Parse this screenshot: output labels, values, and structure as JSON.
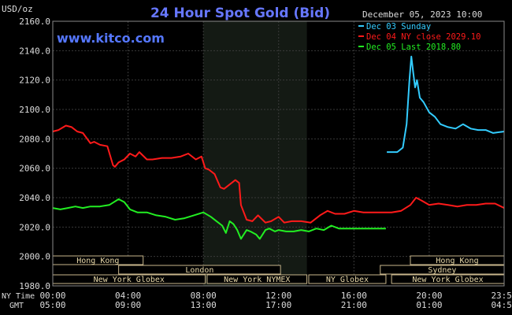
{
  "chart_data": {
    "type": "line",
    "title": "24 Hour Spot Gold (Bid)",
    "website": "www.kitco.com",
    "ylabel": "USD/oz",
    "timestamp": "December 05, 2023 10:00",
    "ylim": [
      1980,
      2160
    ],
    "y_ticks": [
      "2160.0",
      "2140.0",
      "2120.0",
      "2100.0",
      "2080.0",
      "2060.0",
      "2040.0",
      "2020.0",
      "2000.0",
      "1980.0"
    ],
    "x_tick_label_row1": "NY Time",
    "x_tick_label_row2": "GMT",
    "x_ticks_ny": [
      "00:00",
      "04:00",
      "08:00",
      "12:00",
      "16:00",
      "20:00",
      "23:59"
    ],
    "x_ticks_gmt": [
      "05:00",
      "09:00",
      "13:00",
      "17:00",
      "21:00",
      "01:00",
      "04:59"
    ],
    "legend": [
      {
        "label": "Dec 03 Sunday",
        "color": "#33ccff"
      },
      {
        "label": "Dec 04 NY close 2029.10",
        "color": "#ff1a1a"
      },
      {
        "label": "Dec 05 Last 2018.80",
        "color": "#22ee22"
      }
    ],
    "sessions": [
      {
        "label": "Hong Kong",
        "start": 0,
        "end": 4.8
      },
      {
        "label": "London",
        "start": 3.5,
        "end": 12.1
      },
      {
        "label": "New York Globex",
        "start": 0,
        "end": 8.1
      },
      {
        "label": "New York NYMEX",
        "start": 8.2,
        "end": 13.5
      },
      {
        "label": "NY Globex",
        "start": 13.6,
        "end": 17.7
      },
      {
        "label": "Hong Kong",
        "start": 19.0,
        "end": 23.98
      },
      {
        "label": "Sydney",
        "start": 17.4,
        "end": 23.98
      },
      {
        "label": "New York Globex",
        "start": 18.0,
        "end": 23.98
      }
    ],
    "series": [
      {
        "name": "Dec 03 Sunday",
        "color": "#33ccff",
        "x": [
          17.75,
          18.3,
          18.6,
          18.8,
          18.95,
          19.05,
          19.15,
          19.25,
          19.35,
          19.5,
          19.7,
          20.0,
          20.3,
          20.6,
          21.0,
          21.4,
          21.8,
          22.2,
          22.6,
          23.0,
          23.4,
          23.98
        ],
        "values": [
          2071,
          2071,
          2074,
          2090,
          2120,
          2136,
          2125,
          2115,
          2120,
          2108,
          2105,
          2098,
          2095,
          2090,
          2088,
          2087,
          2090,
          2087,
          2086,
          2086,
          2084,
          2085
        ]
      },
      {
        "name": "Dec 04 NY close 2029.10",
        "color": "#ff1a1a",
        "x": [
          0,
          0.3,
          0.7,
          1.0,
          1.3,
          1.6,
          2.0,
          2.2,
          2.5,
          2.9,
          3.2,
          3.3,
          3.5,
          3.8,
          4.1,
          4.4,
          4.6,
          5.0,
          5.3,
          5.8,
          6.3,
          6.8,
          7.2,
          7.6,
          7.9,
          8.1,
          8.3,
          8.6,
          8.9,
          9.1,
          9.3,
          9.5,
          9.7,
          9.9,
          10.0,
          10.3,
          10.6,
          10.9,
          11.3,
          11.6,
          12.0,
          12.3,
          12.7,
          13.2,
          13.7,
          14.2,
          14.6,
          15.0,
          15.5,
          16.0,
          16.5,
          17.0,
          17.5,
          18.0,
          18.5,
          19.0,
          19.3,
          19.6,
          20.0,
          20.5,
          21.0,
          21.5,
          22.0,
          22.5,
          23.0,
          23.5,
          23.98
        ],
        "values": [
          2085,
          2086,
          2089,
          2088,
          2085,
          2084,
          2077,
          2078,
          2076,
          2075,
          2062,
          2061,
          2064,
          2066,
          2070,
          2068,
          2071,
          2066,
          2066,
          2067,
          2067,
          2068,
          2070,
          2066,
          2068,
          2060,
          2059,
          2056,
          2047,
          2046,
          2048,
          2050,
          2052,
          2050,
          2035,
          2025,
          2024,
          2028,
          2023,
          2024,
          2027,
          2023,
          2024,
          2024,
          2023,
          2028,
          2031,
          2029,
          2029,
          2031,
          2030,
          2030,
          2030,
          2030,
          2031,
          2035,
          2040,
          2038,
          2035,
          2036,
          2035,
          2034,
          2035,
          2035,
          2036,
          2036,
          2033
        ]
      },
      {
        "name": "Dec 05 Last 2018.80",
        "color": "#22ee22",
        "x": [
          0,
          0.4,
          0.8,
          1.2,
          1.6,
          2.0,
          2.5,
          3.0,
          3.5,
          3.8,
          4.1,
          4.5,
          5.0,
          5.5,
          6.0,
          6.5,
          7.0,
          7.5,
          8.0,
          8.4,
          8.7,
          9.0,
          9.2,
          9.4,
          9.6,
          9.8,
          10.0,
          10.3,
          10.5,
          10.8,
          11.0,
          11.3,
          11.5,
          11.8,
          12.0,
          12.4,
          12.8,
          13.2,
          13.6,
          14.0,
          14.4,
          14.8,
          15.2,
          15.6,
          16.0,
          16.5,
          17.0,
          17.5,
          17.7
        ],
        "values": [
          2033,
          2032,
          2033,
          2034,
          2033,
          2034,
          2034,
          2035,
          2039,
          2037,
          2032,
          2030,
          2030,
          2028,
          2027,
          2025,
          2026,
          2028,
          2030,
          2027,
          2024,
          2021,
          2016,
          2024,
          2022,
          2018,
          2012,
          2018,
          2017,
          2015,
          2012,
          2018,
          2019,
          2017,
          2018,
          2017,
          2017,
          2018,
          2017,
          2019,
          2018,
          2021,
          2019,
          2019,
          2019,
          2019,
          2019,
          2019,
          2019
        ]
      }
    ],
    "grid": true,
    "shaded_region": [
      8.0,
      13.5
    ]
  }
}
